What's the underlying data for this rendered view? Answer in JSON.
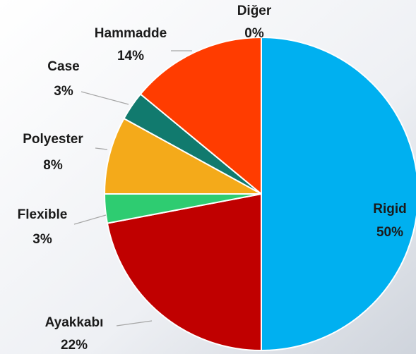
{
  "chart_data": {
    "type": "pie",
    "categories": [
      "Rigid",
      "Ayakkabı",
      "Flexible",
      "Polyester",
      "Case",
      "Hammadde",
      "Diğer"
    ],
    "values": [
      50,
      22,
      3,
      8,
      3,
      14,
      0
    ],
    "value_labels": [
      "50%",
      "22%",
      "3%",
      "8%",
      "3%",
      "14%",
      "0%"
    ],
    "colors": [
      "#00b0f0",
      "#c00000",
      "#2ecc71",
      "#f4aa1a",
      "#117a6e",
      "#ff3c00",
      "#999999"
    ]
  }
}
